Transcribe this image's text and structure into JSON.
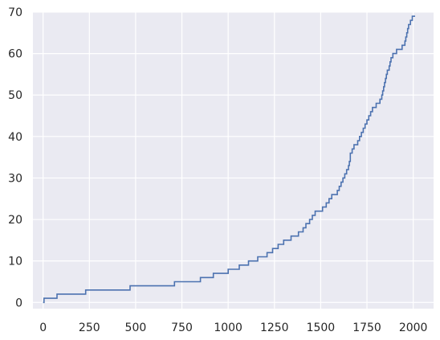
{
  "chart_data": {
    "type": "line",
    "title": "",
    "xlabel": "",
    "ylabel": "",
    "xlim": [
      -55,
      2110
    ],
    "ylim": [
      -1.5,
      70
    ],
    "xticks": [
      0,
      250,
      500,
      750,
      1000,
      1250,
      1500,
      1750,
      2000
    ],
    "yticks": [
      0,
      10,
      20,
      30,
      40,
      50,
      60,
      70
    ],
    "grid": true,
    "colors": {
      "background": "#eaeaf2",
      "grid": "#ffffff",
      "line": "#4c72b0",
      "text": "#262626"
    },
    "series": [
      {
        "step": "post",
        "x": [
          0,
          5,
          60,
          75,
          230,
          470,
          480,
          710,
          850,
          920,
          1000,
          1060,
          1110,
          1160,
          1210,
          1240,
          1270,
          1300,
          1340,
          1380,
          1405,
          1420,
          1440,
          1455,
          1470,
          1490,
          1510,
          1530,
          1545,
          1560,
          1575,
          1590,
          1600,
          1610,
          1620,
          1630,
          1640,
          1650,
          1655,
          1660,
          1670,
          1680,
          1690,
          1700,
          1710,
          1720,
          1730,
          1740,
          1750,
          1760,
          1770,
          1780,
          1790,
          1800,
          1810,
          1820,
          1830,
          1835,
          1840,
          1845,
          1850,
          1855,
          1860,
          1865,
          1870,
          1875,
          1880,
          1890,
          1900,
          1910,
          1925,
          1940,
          1950,
          1955,
          1960,
          1965,
          1970,
          1975,
          1980,
          1985,
          1995,
          2005,
          2010
        ],
        "y": [
          0,
          1,
          1,
          2,
          3,
          4,
          4,
          5,
          6,
          7,
          8,
          9,
          10,
          11,
          12,
          13,
          14,
          15,
          16,
          17,
          18,
          19,
          20,
          21,
          22,
          22,
          23,
          24,
          25,
          26,
          26,
          27,
          28,
          29,
          30,
          31,
          32,
          33,
          34,
          36,
          37,
          38,
          38,
          39,
          40,
          41,
          42,
          43,
          44,
          45,
          46,
          47,
          47,
          48,
          48,
          49,
          50,
          51,
          52,
          53,
          54,
          55,
          56,
          56,
          57,
          58,
          59,
          60,
          60,
          61,
          61,
          62,
          62,
          63,
          64,
          65,
          66,
          67,
          67,
          68,
          69,
          69,
          69
        ]
      }
    ]
  }
}
